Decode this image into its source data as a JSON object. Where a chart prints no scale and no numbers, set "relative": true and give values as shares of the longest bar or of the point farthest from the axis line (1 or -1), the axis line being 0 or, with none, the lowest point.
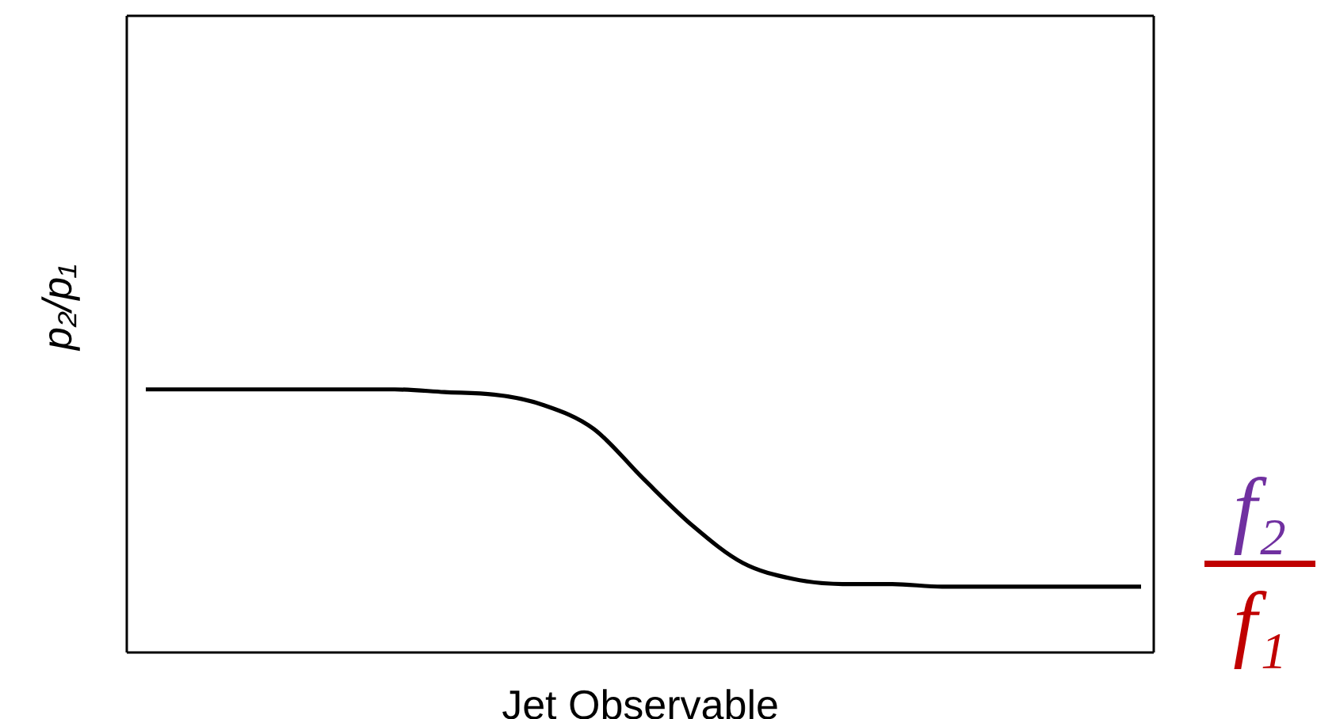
{
  "chart_data": {
    "type": "line",
    "relative": true,
    "xlabel": "Jet Observable",
    "ylabel": "p₂/p₁",
    "annotations": [
      "f₂",
      "f₁"
    ],
    "categories": [
      null,
      null,
      null,
      null,
      null,
      null,
      null,
      null,
      null,
      null,
      null,
      null,
      null,
      null,
      null,
      null,
      null,
      null,
      null,
      null,
      null
    ],
    "series": [
      {
        "color": "#000000",
        "values": [
          1,
          1,
          1,
          1,
          1,
          1,
          0.99,
          0.98,
          0.94,
          0.85,
          0.66,
          0.48,
          0.34,
          0.28,
          0.26,
          0.26,
          0.25,
          0.25,
          0.25,
          0.25,
          0.25
        ]
      }
    ],
    "marker": "none",
    "line_style": "solid"
  }
}
